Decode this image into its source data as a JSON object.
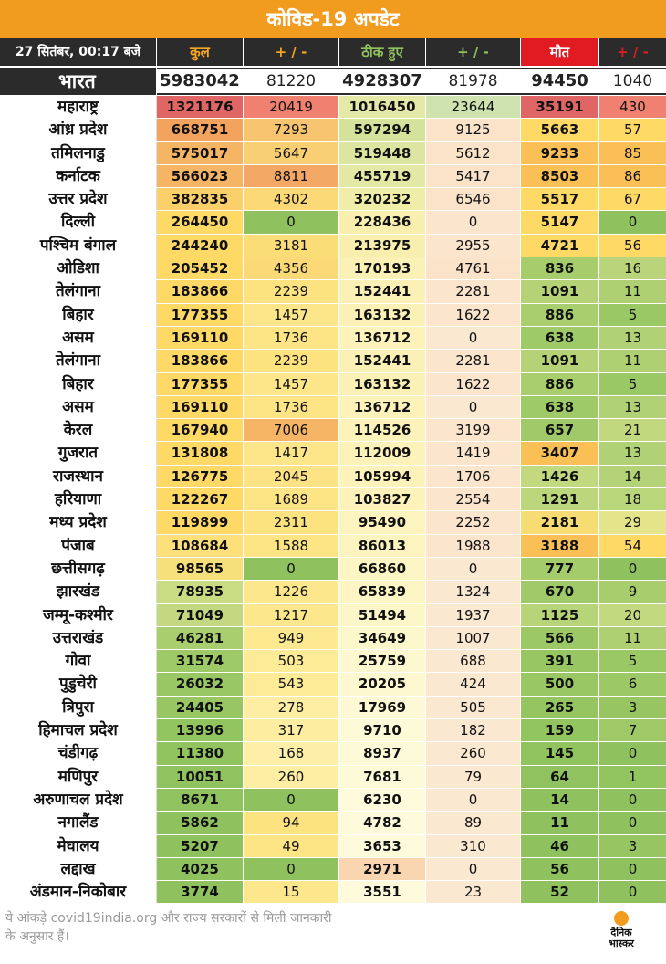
{
  "title": "कोविड-19 अपडेट",
  "header": {
    "date": "27 सितंबर, 00:17 बजे",
    "total": "कुल",
    "change1": "+ / -",
    "recovered": "ठीक हुए",
    "change2": "+ / -",
    "deaths": "मौत",
    "change3": "+ / -"
  },
  "colors": {
    "title_bg": "#f29c1f",
    "header_bg": "#2b2b2b",
    "total_col": "#f6a623",
    "recovered_col": "#8fc25f",
    "deaths_col": "#e21b23"
  },
  "india": {
    "name": "भारत",
    "total": "5983042",
    "total_change": "81220",
    "recovered": "4928307",
    "recovered_change": "81978",
    "deaths": "94450",
    "deaths_change": "1040"
  },
  "rows": [
    {
      "name": "महाराष्ट्र",
      "total": "1321176",
      "dt": "20419",
      "rec": "1016450",
      "dr": "23644",
      "deaths": "35191",
      "dd": "430",
      "colors": [
        "#e06666",
        "#f08070",
        "#e4e9a8",
        "#cfe3b0",
        "#e06666",
        "#f08070"
      ]
    },
    {
      "name": "आंध्र प्रदेश",
      "total": "668751",
      "dt": "7293",
      "rec": "597294",
      "dr": "9125",
      "deaths": "5663",
      "dd": "57",
      "colors": [
        "#f3a35e",
        "#f7c470",
        "#d4e29b",
        "#fae3c8",
        "#ffd966",
        "#ffd966"
      ]
    },
    {
      "name": "तमिलनाडु",
      "total": "575017",
      "dt": "5647",
      "rec": "519448",
      "dr": "5612",
      "deaths": "9233",
      "dd": "85",
      "colors": [
        "#f5b565",
        "#f9cf73",
        "#dce6a0",
        "#fae3c8",
        "#fbc055",
        "#fbc055"
      ]
    },
    {
      "name": "कर्नाटक",
      "total": "566023",
      "dt": "8811",
      "rec": "455719",
      "dr": "5417",
      "deaths": "8503",
      "dd": "86",
      "colors": [
        "#f5b565",
        "#f3a865",
        "#e3e9a4",
        "#fae3c8",
        "#fbc055",
        "#fbc055"
      ]
    },
    {
      "name": "उत्तर प्रदेश",
      "total": "382835",
      "dt": "4302",
      "rec": "320232",
      "dr": "6546",
      "deaths": "5517",
      "dd": "67",
      "colors": [
        "#fbd06a",
        "#fbd976",
        "#f0eda8",
        "#fae3c8",
        "#ffd966",
        "#ffd966"
      ]
    },
    {
      "name": "दिल्ली",
      "total": "264450",
      "dt": "0",
      "rec": "228436",
      "dr": "0",
      "deaths": "5147",
      "dd": "0",
      "colors": [
        "#ffd966",
        "#8fc25f",
        "#f8eeae",
        "#fbe5cc",
        "#ffd966",
        "#8fc25f"
      ]
    },
    {
      "name": "पश्चिम बंगाल",
      "total": "244240",
      "dt": "3181",
      "rec": "213975",
      "dr": "2955",
      "deaths": "4721",
      "dd": "56",
      "colors": [
        "#ffd966",
        "#fbdd78",
        "#f8eeae",
        "#fbe5cc",
        "#ffd966",
        "#ffd966"
      ]
    },
    {
      "name": "ओडिशा",
      "total": "205452",
      "dt": "4356",
      "rec": "170193",
      "dr": "4761",
      "deaths": "836",
      "dd": "16",
      "colors": [
        "#ffd966",
        "#fbd976",
        "#fbf0b5",
        "#fae3c8",
        "#a6cc6b",
        "#b9d47a"
      ]
    },
    {
      "name": "तेलंगाना",
      "total": "183866",
      "dt": "2239",
      "rec": "152441",
      "dr": "2281",
      "deaths": "1091",
      "dd": "11",
      "colors": [
        "#ffd966",
        "#fde280",
        "#fbf0b5",
        "#fbe5cc",
        "#b5d277",
        "#aed073"
      ]
    },
    {
      "name": "बिहार",
      "total": "177355",
      "dt": "1457",
      "rec": "163132",
      "dr": "1622",
      "deaths": "886",
      "dd": "5",
      "colors": [
        "#ffd966",
        "#fde68a",
        "#fbf0b5",
        "#fbe5cc",
        "#a9ce6d",
        "#9ac864"
      ]
    },
    {
      "name": "असम",
      "total": "169110",
      "dt": "1736",
      "rec": "136712",
      "dr": "0",
      "deaths": "638",
      "dd": "13",
      "colors": [
        "#ffd966",
        "#fde485",
        "#fcf2ba",
        "#fbe8d0",
        "#9fca68",
        "#b0d175"
      ]
    },
    {
      "name": "तेलंगाना",
      "total": "183866",
      "dt": "2239",
      "rec": "152441",
      "dr": "2281",
      "deaths": "1091",
      "dd": "11",
      "colors": [
        "#ffd966",
        "#fde280",
        "#fbf0b5",
        "#fbe5cc",
        "#b5d277",
        "#aed073"
      ]
    },
    {
      "name": "बिहार",
      "total": "177355",
      "dt": "1457",
      "rec": "163132",
      "dr": "1622",
      "deaths": "886",
      "dd": "5",
      "colors": [
        "#ffd966",
        "#fde68a",
        "#fbf0b5",
        "#fbe5cc",
        "#a9ce6d",
        "#9ac864"
      ]
    },
    {
      "name": "असम",
      "total": "169110",
      "dt": "1736",
      "rec": "136712",
      "dr": "0",
      "deaths": "638",
      "dd": "13",
      "colors": [
        "#ffd966",
        "#fde485",
        "#fcf2ba",
        "#fbe8d0",
        "#9fca68",
        "#b0d175"
      ]
    },
    {
      "name": "केरल",
      "total": "167940",
      "dt": "7006",
      "rec": "114526",
      "dr": "3199",
      "deaths": "657",
      "dd": "21",
      "colors": [
        "#ffd966",
        "#f5b565",
        "#fcf2ba",
        "#fbe5cc",
        "#a0ca69",
        "#c1d87f"
      ]
    },
    {
      "name": "गुजरात",
      "total": "131808",
      "dt": "1417",
      "rec": "112009",
      "dr": "1419",
      "deaths": "3407",
      "dd": "13",
      "colors": [
        "#ffd966",
        "#fde68a",
        "#fcf2ba",
        "#fbe5cc",
        "#fbc055",
        "#b0d175"
      ]
    },
    {
      "name": "राजस्थान",
      "total": "126775",
      "dt": "2045",
      "rec": "105994",
      "dr": "1706",
      "deaths": "1426",
      "dd": "14",
      "colors": [
        "#ffd966",
        "#fde383",
        "#fcf2ba",
        "#fbe5cc",
        "#c2d980",
        "#b4d277"
      ]
    },
    {
      "name": "हरियाणा",
      "total": "122267",
      "dt": "1689",
      "rec": "103827",
      "dr": "2554",
      "deaths": "1291",
      "dd": "18",
      "colors": [
        "#ffd966",
        "#fde485",
        "#fcf2ba",
        "#fbe5cc",
        "#bcd67c",
        "#bad67b"
      ]
    },
    {
      "name": "मध्य प्रदेश",
      "total": "119899",
      "dt": "2311",
      "rec": "95490",
      "dr": "2252",
      "deaths": "2181",
      "dd": "29",
      "colors": [
        "#ffd966",
        "#fde280",
        "#fcf3be",
        "#fbe5cc",
        "#f7dc73",
        "#e4e48a"
      ]
    },
    {
      "name": "पंजाब",
      "total": "108684",
      "dt": "1588",
      "rec": "86013",
      "dr": "1988",
      "deaths": "3188",
      "dd": "54",
      "colors": [
        "#fde07a",
        "#fde485",
        "#fcf3be",
        "#fbe5cc",
        "#fbc055",
        "#ffd966"
      ]
    },
    {
      "name": "छत्तीसगढ़",
      "total": "98565",
      "dt": "0",
      "rec": "66860",
      "dr": "0",
      "deaths": "777",
      "dd": "0",
      "colors": [
        "#f6e07b",
        "#8fc25f",
        "#fdf5c4",
        "#fbe8d0",
        "#a5cc6b",
        "#8fc25f"
      ]
    },
    {
      "name": "झारखंड",
      "total": "78935",
      "dt": "1226",
      "rec": "65839",
      "dr": "1324",
      "deaths": "670",
      "dd": "9",
      "colors": [
        "#c9db83",
        "#fde78d",
        "#fdf5c4",
        "#fbe8d0",
        "#a0ca69",
        "#a7cd6c"
      ]
    },
    {
      "name": "जम्मू-कश्मीर",
      "total": "71049",
      "dt": "1217",
      "rec": "51494",
      "dr": "1937",
      "deaths": "1125",
      "dd": "20",
      "colors": [
        "#c3d880",
        "#fde78d",
        "#fdf6c8",
        "#fbe8d0",
        "#b7d479",
        "#c3d980"
      ]
    },
    {
      "name": "उत्तराखंड",
      "total": "46281",
      "dt": "949",
      "rec": "34649",
      "dr": "1007",
      "deaths": "566",
      "dd": "11",
      "colors": [
        "#a9ce6d",
        "#fde98f",
        "#fdf7cc",
        "#fbe8d0",
        "#9cc966",
        "#aed073"
      ]
    },
    {
      "name": "गोवा",
      "total": "31574",
      "dt": "503",
      "rec": "25759",
      "dr": "688",
      "deaths": "391",
      "dd": "5",
      "colors": [
        "#9dc966",
        "#fdeb98",
        "#fdf8d0",
        "#fbe8d0",
        "#97c663",
        "#9ac864"
      ]
    },
    {
      "name": "पुडुचेरी",
      "total": "26032",
      "dt": "543",
      "rec": "20205",
      "dr": "424",
      "deaths": "500",
      "dd": "6",
      "colors": [
        "#99c764",
        "#fdeb98",
        "#fdf8d0",
        "#fbe8d0",
        "#99c764",
        "#9cc966"
      ]
    },
    {
      "name": "त्रिपुरा",
      "total": "24405",
      "dt": "278",
      "rec": "17969",
      "dr": "505",
      "deaths": "265",
      "dd": "3",
      "colors": [
        "#97c663",
        "#fdeea3",
        "#fdf9d4",
        "#fbe8d0",
        "#94c561",
        "#96c562"
      ]
    },
    {
      "name": "हिमाचल प्रदेश",
      "total": "13996",
      "dt": "317",
      "rec": "9710",
      "dr": "182",
      "deaths": "159",
      "dd": "7",
      "colors": [
        "#92c460",
        "#fdeda0",
        "#fdfad8",
        "#fbe8d0",
        "#92c460",
        "#9ec966"
      ]
    },
    {
      "name": "चंडीगढ़",
      "total": "11380",
      "dt": "168",
      "rec": "8937",
      "dr": "260",
      "deaths": "145",
      "dd": "0",
      "colors": [
        "#91c35f",
        "#fdefa8",
        "#fdfad8",
        "#fbe8d0",
        "#91c35f",
        "#8fc25f"
      ]
    },
    {
      "name": "मणिपुर",
      "total": "10051",
      "dt": "260",
      "rec": "7681",
      "dr": "79",
      "deaths": "64",
      "dd": "1",
      "colors": [
        "#90c35f",
        "#fdeea3",
        "#fdfad8",
        "#fbe8d0",
        "#90c35f",
        "#92c460"
      ]
    },
    {
      "name": "अरुणाचल प्रदेश",
      "total": "8671",
      "dt": "0",
      "rec": "6230",
      "dr": "0",
      "deaths": "14",
      "dd": "0",
      "colors": [
        "#90c35f",
        "#8fc25f",
        "#fdfbdc",
        "#fbe8d0",
        "#8fc25f",
        "#8fc25f"
      ]
    },
    {
      "name": "नगालैंड",
      "total": "5862",
      "dt": "94",
      "rec": "4782",
      "dr": "89",
      "deaths": "11",
      "dd": "0",
      "colors": [
        "#8fc25f",
        "#fde280",
        "#fdfbdc",
        "#fbe8d0",
        "#8fc25f",
        "#8fc25f"
      ]
    },
    {
      "name": "मेघालय",
      "total": "5207",
      "dt": "49",
      "rec": "3653",
      "dr": "310",
      "deaths": "46",
      "dd": "3",
      "colors": [
        "#8fc25f",
        "#fde485",
        "#fdfbdc",
        "#fbe8d0",
        "#8fc25f",
        "#96c562"
      ]
    },
    {
      "name": "लद्दाख",
      "total": "4025",
      "dt": "0",
      "rec": "2971",
      "dr": "0",
      "deaths": "56",
      "dd": "0",
      "colors": [
        "#8fc25f",
        "#8fc25f",
        "#f9d6b0",
        "#fbe8d0",
        "#8fc25f",
        "#8fc25f"
      ]
    },
    {
      "name": "अंडमान-निकोबार",
      "total": "3774",
      "dt": "15",
      "rec": "3551",
      "dr": "23",
      "deaths": "52",
      "dd": "0",
      "colors": [
        "#8fc25f",
        "#fde78d",
        "#fdfbdc",
        "#fbe8d0",
        "#8fc25f",
        "#8fc25f"
      ]
    }
  ],
  "footer": {
    "note": "ये आंकड़े covid19india.org और राज्य सरकारों से मिली जानकारी के अनुसार हैं।",
    "logo_line1": "दैनिक",
    "logo_line2": "भास्कर"
  }
}
